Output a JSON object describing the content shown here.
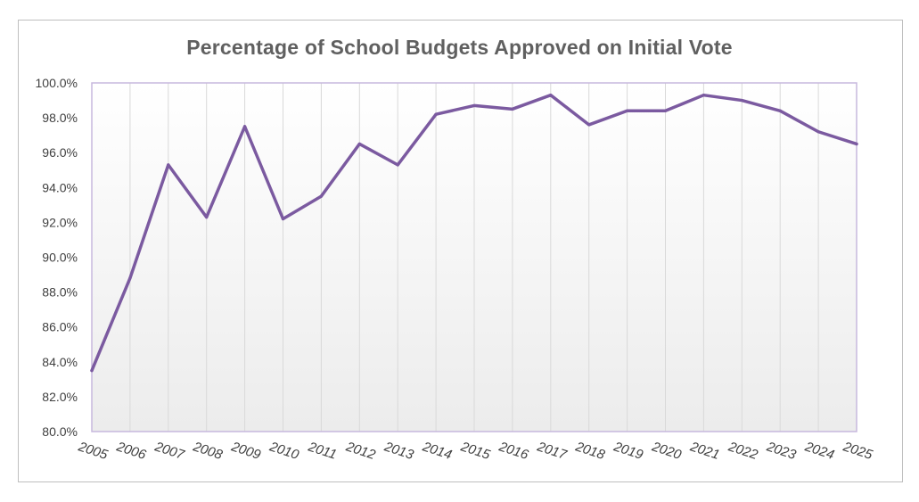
{
  "chart_data": {
    "type": "line",
    "title": "Percentage of School Budgets Approved on Initial Vote",
    "xlabel": "",
    "ylabel": "",
    "categories": [
      "2005",
      "2006",
      "2007",
      "2008",
      "2009",
      "2010",
      "2011",
      "2012",
      "2013",
      "2014",
      "2015",
      "2016",
      "2017",
      "2018",
      "2019",
      "2020",
      "2021",
      "2022",
      "2023",
      "2024",
      "2025"
    ],
    "series": [
      {
        "values": [
          83.5,
          88.8,
          95.3,
          92.3,
          97.5,
          92.2,
          93.5,
          96.5,
          95.3,
          98.2,
          98.7,
          98.5,
          99.3,
          97.6,
          98.4,
          98.4,
          99.3,
          99.0,
          98.4,
          97.2,
          96.5
        ]
      }
    ],
    "ylim": [
      80,
      100
    ],
    "yticks": [
      "80.0%",
      "82.0%",
      "84.0%",
      "86.0%",
      "88.0%",
      "90.0%",
      "92.0%",
      "94.0%",
      "96.0%",
      "98.0%",
      "100.0%"
    ],
    "grid": "vertical",
    "legend": "none",
    "colors": {
      "line": "#7b5aa0",
      "plot_border": "#c7b8dd",
      "gridline": "#d9d9d9",
      "plot_gradient_top": "#ffffff",
      "plot_gradient_bottom": "#ececec"
    }
  }
}
